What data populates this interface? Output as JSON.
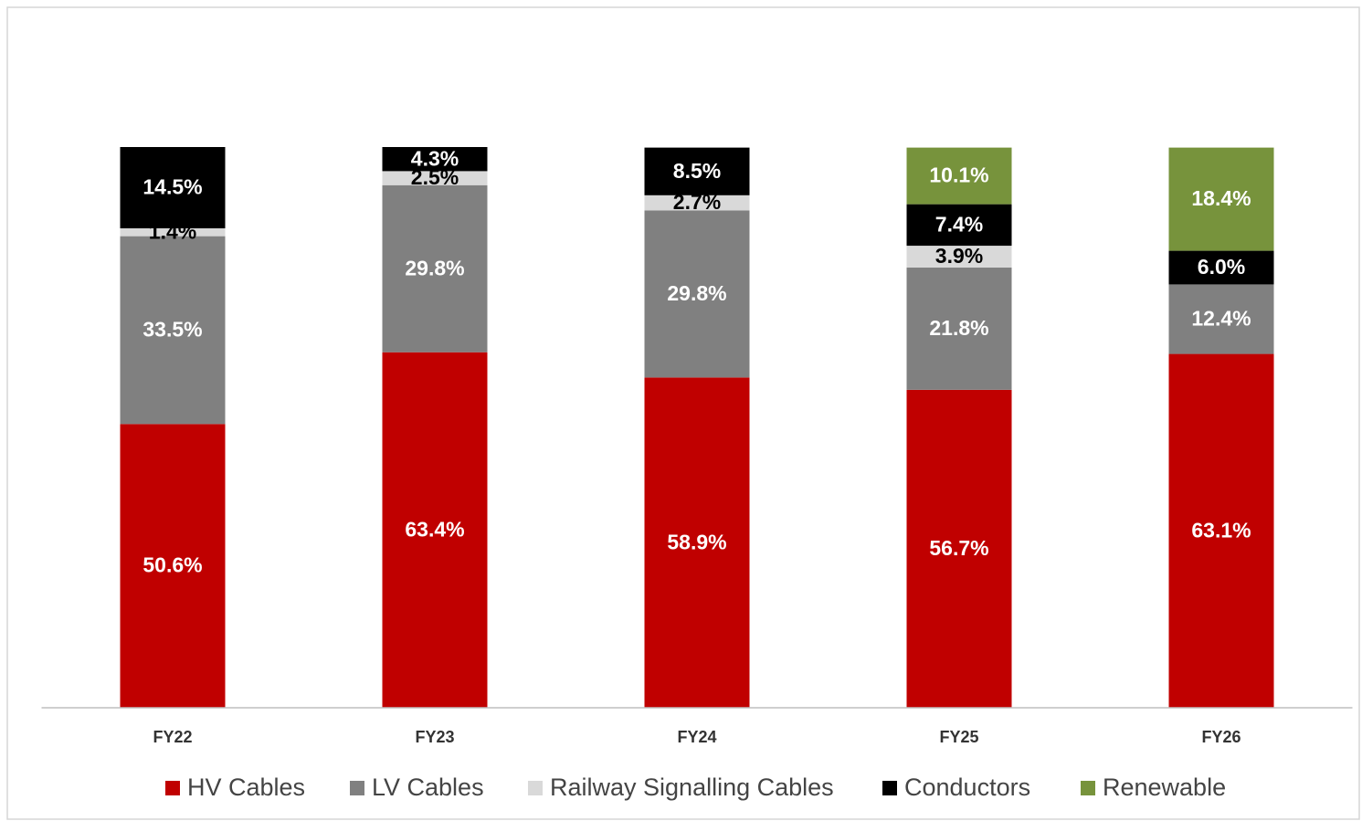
{
  "chart_data": {
    "type": "stacked-bar",
    "categories": [
      "FY22",
      "FY23",
      "FY24",
      "FY25",
      "FY26"
    ],
    "ylim": [
      0,
      100
    ],
    "series": [
      {
        "name": "HV Cables",
        "color": "#c00000",
        "label_color": "#ffffff",
        "values": [
          50.6,
          63.4,
          58.9,
          56.7,
          63.1
        ],
        "value_labels": [
          "50.6%",
          "63.4%",
          "58.9%",
          "56.7%",
          "63.1%"
        ]
      },
      {
        "name": "LV Cables",
        "color": "#808080",
        "label_color": "#ffffff",
        "values": [
          33.5,
          29.8,
          29.8,
          21.8,
          12.4
        ],
        "value_labels": [
          "33.5%",
          "29.8%",
          "29.8%",
          "21.8%",
          "12.4%"
        ]
      },
      {
        "name": "Railway Signalling Cables",
        "color": "#d9d9d9",
        "label_color": "#000000",
        "values": [
          1.4,
          2.5,
          2.7,
          3.9,
          null
        ],
        "value_labels": [
          "1.4%",
          "2.5%",
          "2.7%",
          "3.9%",
          null
        ]
      },
      {
        "name": "Conductors",
        "color": "#000000",
        "label_color": "#ffffff",
        "values": [
          14.5,
          4.3,
          8.5,
          7.4,
          6.0
        ],
        "value_labels": [
          "14.5%",
          "4.3%",
          "8.5%",
          "7.4%",
          "6.0%"
        ]
      },
      {
        "name": "Renewable",
        "color": "#77933c",
        "label_color": "#ffffff",
        "values": [
          null,
          null,
          null,
          10.1,
          18.4
        ],
        "value_labels": [
          null,
          null,
          null,
          "10.1%",
          "18.4%"
        ]
      }
    ]
  }
}
